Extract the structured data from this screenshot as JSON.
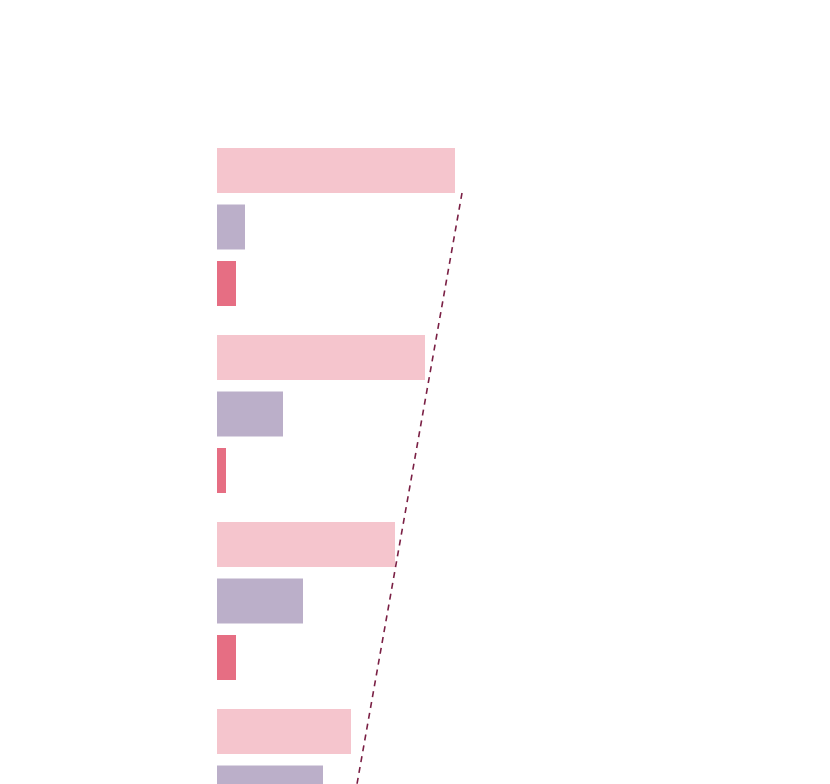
{
  "chart_data": {
    "type": "bar",
    "orientation": "horizontal",
    "categories": [
      null,
      null,
      null,
      null
    ],
    "series": [
      {
        "color": "#f5c5cd",
        "values": [
          238,
          208,
          178,
          134
        ]
      },
      {
        "color": "#bbafc9",
        "values": [
          28,
          66,
          86,
          106
        ]
      },
      {
        "color": "#e66e83",
        "values": [
          19,
          9,
          19,
          null
        ]
      }
    ],
    "xlim": [
      0,
      613
    ]
  }
}
